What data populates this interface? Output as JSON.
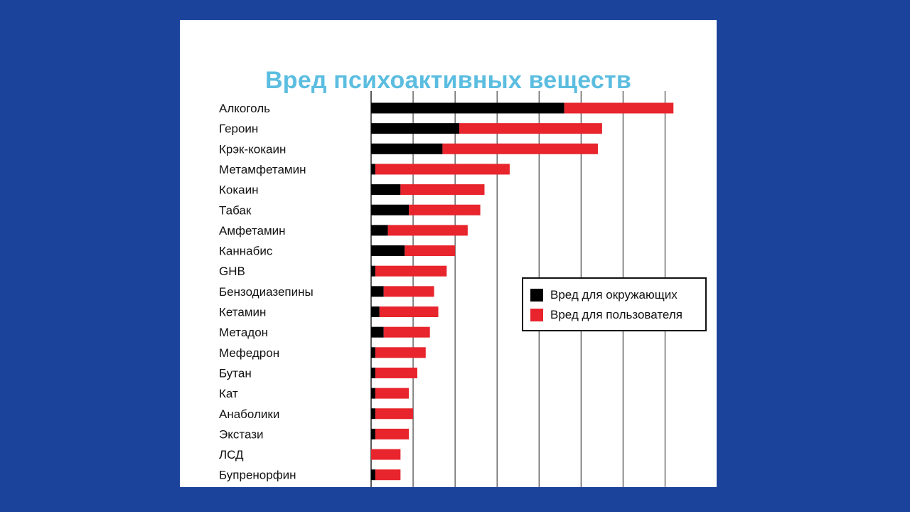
{
  "chart_data": {
    "type": "bar",
    "orientation": "horizontal",
    "stacked": true,
    "title": "Вред психоактивных веществ",
    "categories": [
      "Алкоголь",
      "Героин",
      "Крэк-кокаин",
      "Метамфетамин",
      "Кокаин",
      "Табак",
      "Амфетамин",
      "Каннабис",
      "GHB",
      "Бензодиазепины",
      "Кетамин",
      "Метадон",
      "Мефедрон",
      "Бутан",
      "Кат",
      "Анаболики",
      "Экстази",
      "ЛСД",
      "Бупренорфин"
    ],
    "series": [
      {
        "name": "Вред для окружающих",
        "color": "#000000",
        "values": [
          46,
          21,
          17,
          1,
          7,
          9,
          4,
          8,
          1,
          3,
          2,
          3,
          1,
          1,
          1,
          1,
          1,
          0,
          1
        ]
      },
      {
        "name": "Вред для пользователя",
        "color": "#e8242c",
        "values": [
          26,
          34,
          37,
          32,
          20,
          17,
          19,
          12,
          17,
          12,
          14,
          11,
          12,
          10,
          8,
          9,
          8,
          7,
          6
        ]
      }
    ],
    "xlim": [
      0,
      75
    ],
    "grid": true,
    "legend_position": "right"
  }
}
